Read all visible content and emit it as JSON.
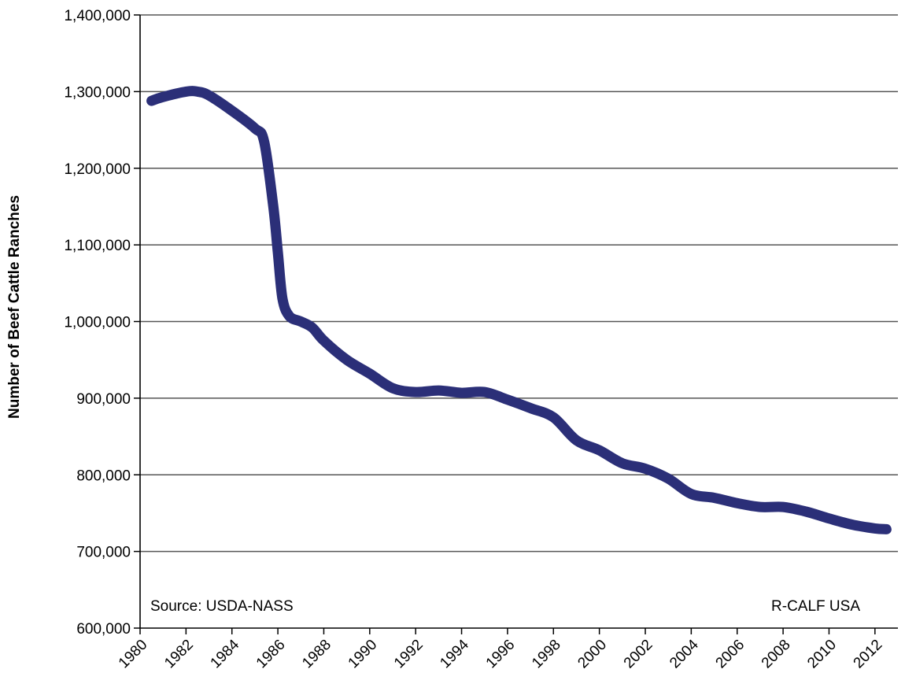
{
  "chart_data": {
    "type": "line",
    "title": "",
    "xlabel": "",
    "ylabel": "Number of Beef Cattle Ranches",
    "xlim": [
      1980,
      2013
    ],
    "ylim": [
      600000,
      1400000
    ],
    "x_ticks": [
      "1980",
      "1982",
      "1984",
      "1986",
      "1988",
      "1990",
      "1992",
      "1994",
      "1996",
      "1998",
      "2000",
      "2002",
      "2004",
      "2006",
      "2008",
      "2010",
      "2012"
    ],
    "y_ticks": [
      "600,000",
      "700,000",
      "800,000",
      "900,000",
      "1,000,000",
      "1,100,000",
      "1,200,000",
      "1,300,000",
      "1,400,000"
    ],
    "grid": "horizontal",
    "legend": "none",
    "line_color": "#2b2f78",
    "series": [
      {
        "x": [
          1980.5,
          1981,
          1982,
          1982.5,
          1983,
          1984,
          1985,
          1985.4,
          1985.8,
          1986,
          1986.2,
          1986.5,
          1987,
          1987.5,
          1988,
          1989,
          1990,
          1991,
          1992,
          1993,
          1994,
          1995,
          1996,
          1997,
          1998,
          1999,
          2000,
          2001,
          2002,
          2003,
          2004,
          2005,
          2006,
          2007,
          2008,
          2009,
          2010,
          2011,
          2012,
          2012.5
        ],
        "y": [
          1288000,
          1293000,
          1300000,
          1300000,
          1295000,
          1275000,
          1252000,
          1235000,
          1150000,
          1090000,
          1030000,
          1007000,
          1000000,
          992000,
          975000,
          950000,
          932000,
          913000,
          908000,
          910000,
          907000,
          908000,
          898000,
          887000,
          875000,
          845000,
          832000,
          815000,
          808000,
          795000,
          775000,
          770000,
          763000,
          758000,
          758000,
          752000,
          743000,
          735000,
          730000,
          729000
        ]
      }
    ],
    "annotations": [
      {
        "text": "Source:  USDA-NASS",
        "position": "bottom-left"
      },
      {
        "text": "R-CALF USA",
        "position": "bottom-right"
      }
    ]
  }
}
